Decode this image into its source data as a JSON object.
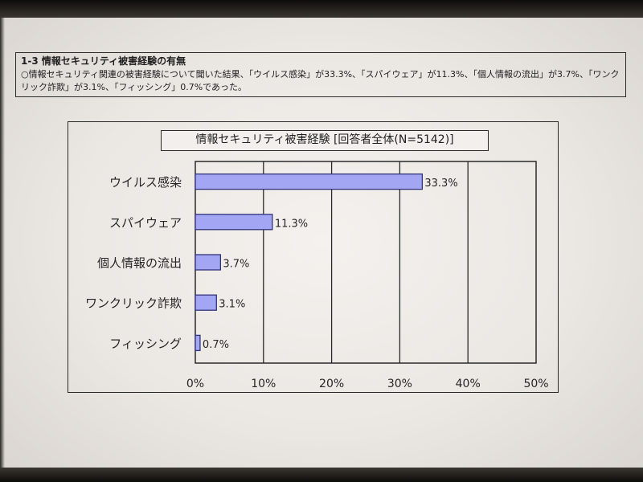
{
  "header": {
    "heading": "1-3  情報セキュリティ被害経験の有無",
    "summary": "○情報セキュリティ関連の被害経験について聞いた結果、「ウイルス感染」が33.3%、「スパイウェア」が11.3%、「個人情報の流出」が3.7%、「ワンクリック詐欺」が3.1%、「フィッシング」0.7%であった。"
  },
  "chart_data": {
    "type": "bar",
    "orientation": "horizontal",
    "title": "情報セキュリティ被害経験 [回答者全体(N=5142)]",
    "categories": [
      "ウイルス感染",
      "スパイウェア",
      "個人情報の流出",
      "ワンクリック詐欺",
      "フィッシング"
    ],
    "values": [
      33.3,
      11.3,
      3.7,
      3.1,
      0.7
    ],
    "data_labels": [
      "33.3%",
      "11.3%",
      "3.7%",
      "3.1%",
      "0.7%"
    ],
    "xlim": [
      0,
      50
    ],
    "x_ticks": [
      0,
      10,
      20,
      30,
      40,
      50
    ],
    "x_tick_labels": [
      "0%",
      "10%",
      "20%",
      "30%",
      "40%",
      "50%"
    ],
    "xlabel": "",
    "ylabel": "",
    "grid": "vertical",
    "legend": "none",
    "bar_color": "#a3a6f2",
    "bar_edge_color": "#33337a"
  }
}
